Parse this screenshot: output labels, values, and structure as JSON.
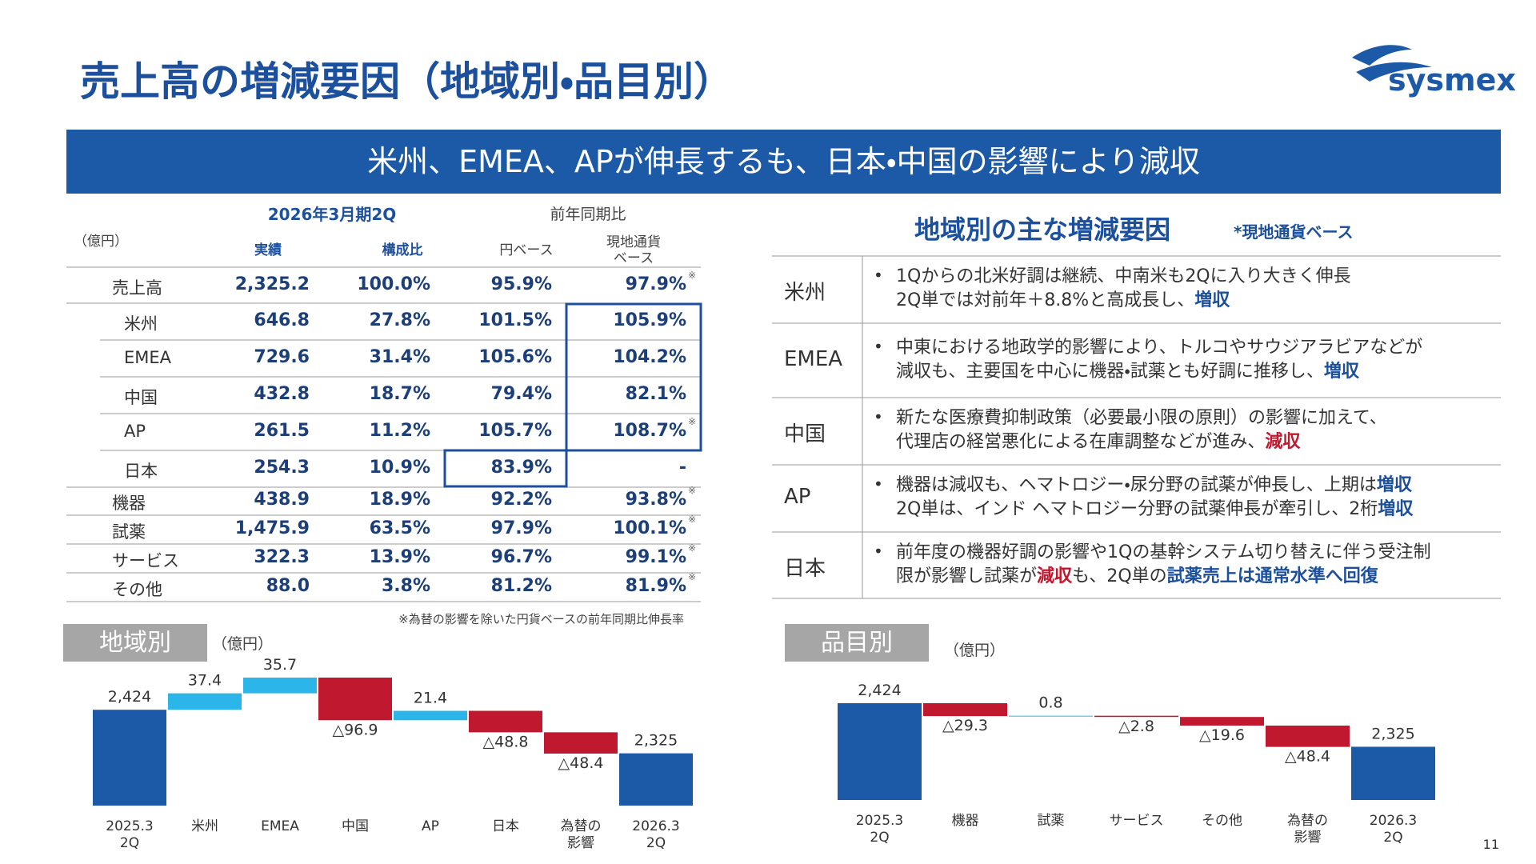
{
  "header": {
    "title": "売上高の増減要因（地域別・品目別）",
    "logo": "sysmex",
    "banner": "米州、EMEA、APが伸長するも、日本・中国の影響により減収"
  },
  "table": {
    "unit": "（億円）",
    "group1": "2026年3月期2Q",
    "group2": "前年同期比",
    "columns": [
      "実績",
      "構成比",
      "円ベース",
      "現地通貨\nベース"
    ],
    "total": {
      "name": "売上高",
      "cells": [
        "2,325.2",
        "100.0%",
        "95.9%",
        "97.9%"
      ],
      "note": "※"
    },
    "regions": [
      {
        "name": "米州",
        "cells": [
          "646.8",
          "27.8%",
          "101.5%",
          "105.9%"
        ]
      },
      {
        "name": "EMEA",
        "cells": [
          "729.6",
          "31.4%",
          "105.6%",
          "104.2%"
        ]
      },
      {
        "name": "中国",
        "cells": [
          "432.8",
          "18.7%",
          "79.4%",
          "82.1%"
        ]
      },
      {
        "name": "AP",
        "cells": [
          "261.5",
          "11.2%",
          "105.7%",
          "108.7%"
        ],
        "note": "※"
      },
      {
        "name": "日本",
        "cells": [
          "254.3",
          "10.9%",
          "83.9%",
          "-"
        ]
      }
    ],
    "products": [
      {
        "name": "機器",
        "cells": [
          "438.9",
          "18.9%",
          "92.2%",
          "93.8%"
        ],
        "note": "※"
      },
      {
        "name": "試薬",
        "cells": [
          "1,475.9",
          "63.5%",
          "97.9%",
          "100.1%"
        ],
        "note": "※"
      },
      {
        "name": "サービス",
        "cells": [
          "322.3",
          "13.9%",
          "96.7%",
          "99.1%"
        ],
        "note": "※"
      },
      {
        "name": "その他",
        "cells": [
          "88.0",
          "3.8%",
          "81.2%",
          "81.9%"
        ],
        "note": "※"
      }
    ],
    "footnote": "※為替の影響を除いた円貨ベースの前年同期比伸長率"
  },
  "factors": {
    "title": "地域別の主な増減要因",
    "note": "*現地通貨ベース",
    "rows": [
      {
        "region": "米州",
        "segments": [
          {
            "text": "1Qからの北米好調は継続、中南米も2Qに入り大きく伸長\n2Q単では対前年＋8.8%と高成長し、",
            "style": "plain"
          },
          {
            "text": "増収",
            "style": "up"
          }
        ]
      },
      {
        "region": "EMEA",
        "segments": [
          {
            "text": "中東における地政学的影響により、トルコやサウジアラビアなどが\n減収も、主要国を中心に機器・試薬とも好調に推移し、",
            "style": "plain"
          },
          {
            "text": "増収",
            "style": "up"
          }
        ]
      },
      {
        "region": "中国",
        "segments": [
          {
            "text": "新たな医療費抑制政策（必要最小限の原則）の影響に加えて、\n代理店の経営悪化による在庫調整などが進み、",
            "style": "plain"
          },
          {
            "text": "減収",
            "style": "down"
          }
        ]
      },
      {
        "region": "AP",
        "segments": [
          {
            "text": "機器は減収も、ヘマトロジー・尿分野の試薬が伸長し、上期は",
            "style": "plain"
          },
          {
            "text": "増収",
            "style": "up"
          },
          {
            "text": "\n2Q単は、インド ヘマトロジー分野の試薬伸長が牽引し、2桁",
            "style": "plain"
          },
          {
            "text": "増収",
            "style": "up"
          }
        ]
      },
      {
        "region": "日本",
        "segments": [
          {
            "text": "前年度の機器好調の影響や1Qの基幹システム切り替えに伴う受注制\n限が影響し試薬が",
            "style": "plain"
          },
          {
            "text": "減収",
            "style": "down"
          },
          {
            "text": "も、2Q単の",
            "style": "plain"
          },
          {
            "text": "試薬売上は通常水準へ回復",
            "style": "up"
          }
        ]
      }
    ]
  },
  "chart_data": [
    {
      "type": "waterfall",
      "title": "地域別",
      "unit": "（億円）",
      "categories": [
        "2025.3\n2Q",
        "米州",
        "EMEA",
        "中国",
        "AP",
        "日本",
        "為替の\n影響",
        "2026.3\n2Q"
      ],
      "measure": [
        "absolute",
        "relative",
        "relative",
        "relative",
        "relative",
        "relative",
        "relative",
        "total"
      ],
      "values": [
        2424,
        37.4,
        35.7,
        -96.9,
        21.4,
        -48.8,
        -48.4,
        2325
      ],
      "value_labels": [
        "2,424",
        "37.4",
        "35.7",
        "△96.9",
        "21.4",
        "△48.8",
        "△48.4",
        "2,325"
      ],
      "colors": {
        "total": "#1c5aa8",
        "increase": "#2cb5e8",
        "decrease": "#c0182e"
      }
    },
    {
      "type": "waterfall",
      "title": "品目別",
      "unit": "（億円）",
      "categories": [
        "2025.3\n2Q",
        "機器",
        "試薬",
        "サービス",
        "その他",
        "為替の\n影響",
        "2026.3\n2Q"
      ],
      "measure": [
        "absolute",
        "relative",
        "relative",
        "relative",
        "relative",
        "relative",
        "total"
      ],
      "values": [
        2424,
        -29.3,
        0.8,
        -2.8,
        -19.6,
        -48.4,
        2325
      ],
      "value_labels": [
        "2,424",
        "△29.3",
        "0.8",
        "△2.8",
        "△19.6",
        "△48.4",
        "2,325"
      ],
      "colors": {
        "total": "#1c5aa8",
        "increase": "#2cb5e8",
        "decrease": "#c0182e"
      }
    }
  ],
  "page_number": "11"
}
